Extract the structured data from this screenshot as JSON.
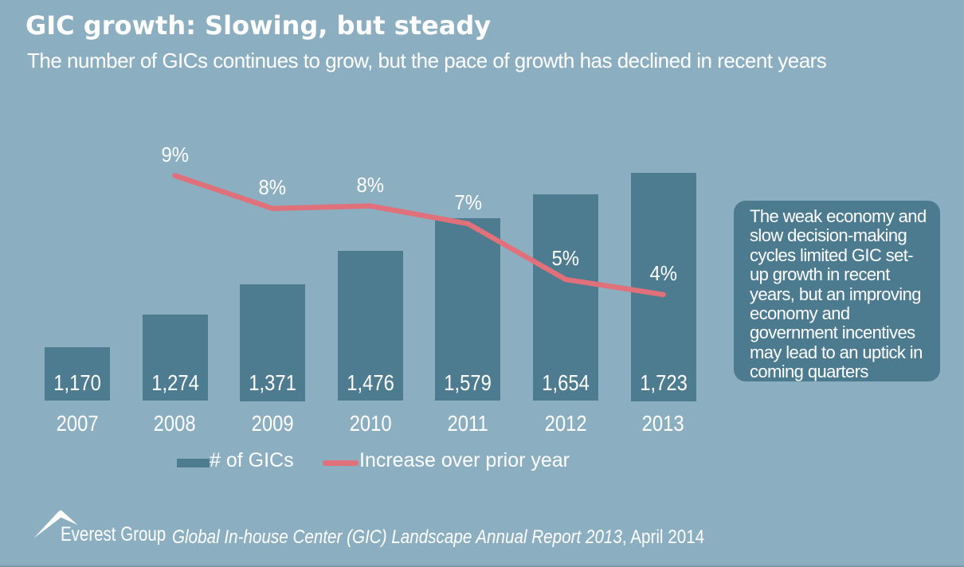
{
  "page": {
    "title": "GIC growth: Slowing, but steady",
    "subtitle": "The number of GICs continues to grow, but the pace of growth has declined in recent years"
  },
  "chart_data": {
    "type": "bar",
    "title": "GIC growth: Slowing, but steady",
    "subtitle": "The number of GICs continues to grow, but the pace of growth has declined in recent years",
    "categories": [
      "2007",
      "2008",
      "2009",
      "2010",
      "2011",
      "2012",
      "2013"
    ],
    "series": [
      {
        "name": "# of GICs",
        "type": "bar",
        "values": [
          1170,
          1274,
          1371,
          1476,
          1579,
          1654,
          1723
        ],
        "labels": [
          "1,170",
          "1,274",
          "1,371",
          "1,476",
          "1,579",
          "1,654",
          "1,723"
        ],
        "color": "#4D7B8F",
        "axis": {
          "min": 1000,
          "max": 1800
        }
      },
      {
        "name": "Increase over prior year",
        "type": "line",
        "categories": [
          "2008",
          "2009",
          "2010",
          "2011",
          "2012",
          "2013"
        ],
        "values": [
          8.9,
          7.6,
          7.7,
          7.0,
          4.8,
          4.2
        ],
        "labels": [
          "9%",
          "8%",
          "8%",
          "7%",
          "5%",
          "4%"
        ],
        "color": "#E0707A",
        "axis": {
          "min": 0,
          "max": 10,
          "unit": "%"
        }
      }
    ],
    "legend_position": "bottom",
    "grid": false,
    "value_labels": "inside-base",
    "colors": {
      "background": "#8BAFC0",
      "bar": "#4D7B8F",
      "line": "#E0707A",
      "callout_background": "#4C7A8E",
      "text": "#FFFFFF"
    }
  },
  "callout": {
    "text": "The weak economy and slow decision-making cycles limited GIC set-up growth in recent years, but an improving economy and government incentives may lead to an uptick in coming quarters"
  },
  "footer": {
    "brand": "Everest Group",
    "report_italic": "Global In-house Center (GIC) Landscape Annual Report 2013",
    "report_rest": ", April 2014"
  }
}
